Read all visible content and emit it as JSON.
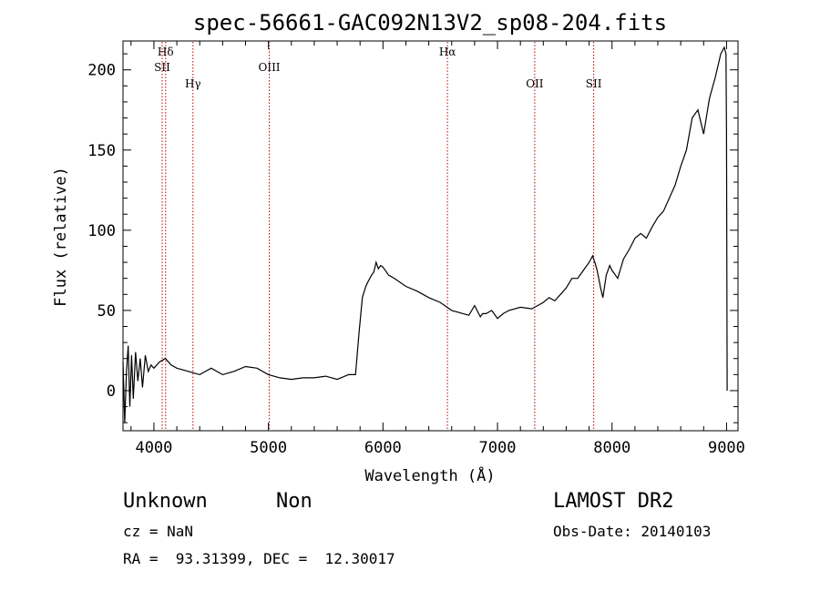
{
  "chart_data": {
    "type": "line",
    "title": "spec-56661-GAC092N13V2_sp08-204.fits",
    "xlabel": "Wavelength (Å)",
    "ylabel": "Flux (relative)",
    "xlim": [
      3730,
      9100
    ],
    "ylim": [
      -25,
      218
    ],
    "x_ticks": [
      4000,
      5000,
      6000,
      7000,
      8000,
      9000
    ],
    "y_ticks": [
      0,
      50,
      100,
      150,
      200
    ],
    "grid": false,
    "series": [
      {
        "x": [
          3730,
          3745,
          3760,
          3775,
          3790,
          3805,
          3820,
          3840,
          3860,
          3880,
          3900,
          3925,
          3950,
          3975,
          4000,
          4050,
          4100,
          4150,
          4200,
          4300,
          4400,
          4500,
          4600,
          4700,
          4800,
          4900,
          5000,
          5100,
          5200,
          5300,
          5400,
          5500,
          5600,
          5700,
          5760,
          5790,
          5820,
          5850,
          5870,
          5900,
          5920,
          5940,
          5960,
          5980,
          6000,
          6050,
          6100,
          6200,
          6300,
          6400,
          6500,
          6560,
          6600,
          6700,
          6750,
          6800,
          6850,
          6870,
          6900,
          6950,
          7000,
          7050,
          7100,
          7200,
          7300,
          7350,
          7400,
          7450,
          7500,
          7550,
          7600,
          7650,
          7700,
          7750,
          7800,
          7830,
          7850,
          7870,
          7900,
          7920,
          7950,
          7980,
          8000,
          8050,
          8100,
          8150,
          8200,
          8250,
          8300,
          8350,
          8400,
          8450,
          8500,
          8550,
          8600,
          8650,
          8700,
          8750,
          8800,
          8850,
          8900,
          8950,
          8980,
          8995,
          9000,
          9005
        ],
        "y": [
          18,
          -20,
          12,
          28,
          -10,
          22,
          -5,
          24,
          6,
          20,
          2,
          22,
          12,
          16,
          14,
          18,
          20,
          16,
          14,
          12,
          10,
          14,
          10,
          12,
          15,
          14,
          10,
          8,
          7,
          8,
          8,
          9,
          7,
          10,
          10,
          35,
          58,
          65,
          68,
          72,
          74,
          80,
          76,
          78,
          77,
          72,
          70,
          65,
          62,
          58,
          55,
          52,
          50,
          48,
          47,
          53,
          46,
          48,
          48,
          50,
          45,
          48,
          50,
          52,
          51,
          53,
          55,
          58,
          56,
          60,
          64,
          70,
          70,
          75,
          80,
          84,
          80,
          75,
          64,
          58,
          72,
          78,
          75,
          70,
          82,
          88,
          95,
          98,
          95,
          102,
          108,
          112,
          120,
          128,
          140,
          150,
          170,
          175,
          160,
          182,
          195,
          210,
          214,
          210,
          160,
          0
        ],
        "color": "#000000"
      }
    ],
    "annotations": [
      {
        "label": "Hδ",
        "x": 4102,
        "row": 0
      },
      {
        "label": "SII",
        "x": 4072,
        "row": 1
      },
      {
        "label": "Hγ",
        "x": 4341,
        "row": 2
      },
      {
        "label": "OIII",
        "x": 5007,
        "row": 1
      },
      {
        "label": "Hα",
        "x": 6563,
        "row": 0
      },
      {
        "label": "OII",
        "x": 7325,
        "row": 2
      },
      {
        "label": "SII",
        "x": 7840,
        "row": 2
      }
    ]
  },
  "footer": {
    "object_type": "Unknown",
    "object_subclass": "Non",
    "survey": "LAMOST DR2",
    "redshift": "cz = NaN",
    "obs_date": "Obs-Date: 20140103",
    "coords": "RA =  93.31399, DEC =  12.30017"
  }
}
